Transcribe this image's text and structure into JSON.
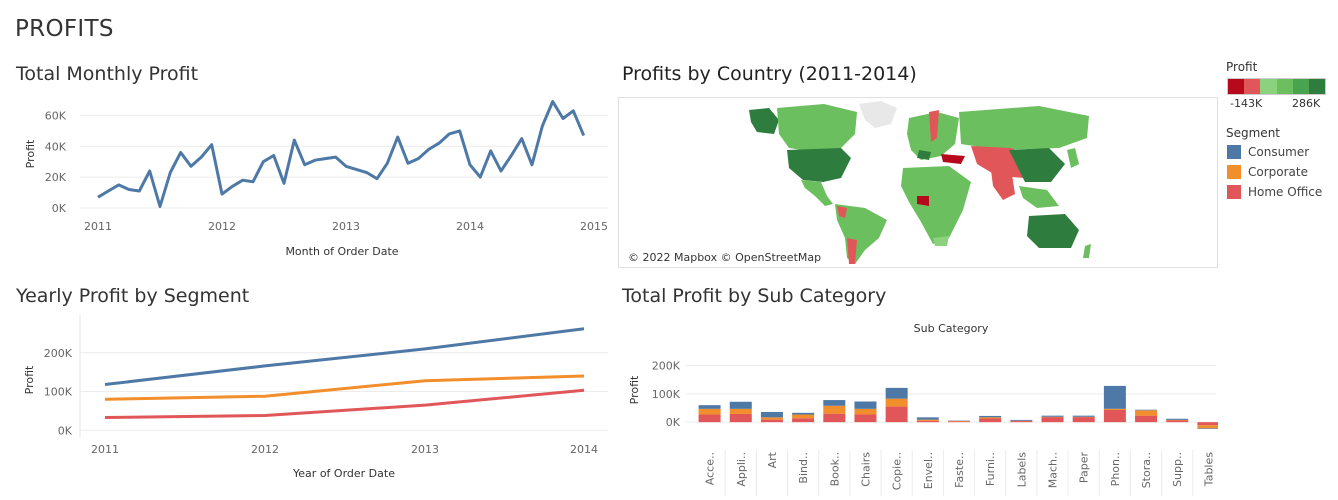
{
  "dashboard": {
    "title": "PROFITS"
  },
  "colors": {
    "consumer": "#4e79a7",
    "corporate": "#f28e2b",
    "home_office": "#e15759",
    "monthly_line": "#4e79a7",
    "profit_scale": [
      "#b60a1c",
      "#e15759",
      "#8cd17d",
      "#6cbf5f",
      "#4aa34e",
      "#2e7d3e"
    ]
  },
  "monthly": {
    "title": "Total Monthly Profit",
    "chart_data": {
      "type": "line",
      "title": "Total Monthly Profit",
      "xlabel": "Month of Order Date",
      "ylabel": "Profit",
      "x_ticks": [
        "2011",
        "2012",
        "2013",
        "2014",
        "2015"
      ],
      "y_ticks": [
        "0K",
        "20K",
        "40K",
        "60K"
      ],
      "ylim": [
        0,
        70000
      ],
      "x_start": "2011-01",
      "x": [
        "2011-01",
        "2011-02",
        "2011-03",
        "2011-04",
        "2011-05",
        "2011-06",
        "2011-07",
        "2011-08",
        "2011-09",
        "2011-10",
        "2011-11",
        "2011-12",
        "2012-01",
        "2012-02",
        "2012-03",
        "2012-04",
        "2012-05",
        "2012-06",
        "2012-07",
        "2012-08",
        "2012-09",
        "2012-10",
        "2012-11",
        "2012-12",
        "2013-01",
        "2013-02",
        "2013-03",
        "2013-04",
        "2013-05",
        "2013-06",
        "2013-07",
        "2013-08",
        "2013-09",
        "2013-10",
        "2013-11",
        "2013-12",
        "2014-01",
        "2014-02",
        "2014-03",
        "2014-04",
        "2014-05",
        "2014-06",
        "2014-07",
        "2014-08",
        "2014-09",
        "2014-10",
        "2014-11",
        "2014-12"
      ],
      "values": [
        7000,
        11000,
        15000,
        12000,
        11000,
        24000,
        1000,
        23000,
        36000,
        27000,
        33000,
        41000,
        9000,
        14000,
        18000,
        17000,
        30000,
        34000,
        16000,
        44000,
        28000,
        31000,
        32000,
        33000,
        27000,
        25000,
        23000,
        19000,
        29000,
        46000,
        29000,
        32000,
        38000,
        42000,
        48000,
        50000,
        28000,
        20000,
        37000,
        24000,
        34000,
        45000,
        28000,
        53000,
        69000,
        58000,
        63000,
        47000
      ]
    }
  },
  "map": {
    "title": "Profits by Country (2011-2014)",
    "attribution": "© 2022 Mapbox © OpenStreetMap",
    "legend_title": "Profit",
    "legend_min": "-143K",
    "legend_max": "286K"
  },
  "segment_legend": {
    "title": "Segment",
    "items": [
      {
        "label": "Consumer",
        "color": "#4e79a7"
      },
      {
        "label": "Corporate",
        "color": "#f28e2b"
      },
      {
        "label": "Home Office",
        "color": "#e15759"
      }
    ]
  },
  "yearly": {
    "title": "Yearly Profit by Segment",
    "chart_data": {
      "type": "line",
      "title": "Yearly Profit by Segment",
      "xlabel": "Year of Order Date",
      "ylabel": "Profit",
      "categories": [
        "2011",
        "2012",
        "2013",
        "2014"
      ],
      "y_ticks": [
        "0K",
        "100K",
        "200K"
      ],
      "ylim": [
        -20000,
        300000
      ],
      "series": [
        {
          "name": "Consumer",
          "values": [
            118000,
            166000,
            210000,
            262000
          ]
        },
        {
          "name": "Corporate",
          "values": [
            80000,
            88000,
            128000,
            140000
          ]
        },
        {
          "name": "Home Office",
          "values": [
            33000,
            38000,
            65000,
            103000
          ]
        }
      ]
    }
  },
  "subcat": {
    "title": "Total Profit by Sub Category",
    "chart_data": {
      "type": "bar",
      "stacked": true,
      "title": "Total Profit by Sub Category",
      "header": "Sub Category",
      "ylabel": "Profit",
      "y_ticks": [
        "0K",
        "100K",
        "200K"
      ],
      "ylim": [
        -70000,
        290000
      ],
      "categories": [
        "Acce..",
        "Appli..",
        "Art",
        "Bind..",
        "Book..",
        "Chairs",
        "Copie..",
        "Envel..",
        "Faste..",
        "Furni..",
        "Labels",
        "Mach..",
        "Paper",
        "Phon..",
        "Stora..",
        "Supp..",
        "Tables"
      ],
      "series": [
        {
          "name": "Home Office",
          "values": [
            27000,
            29000,
            9000,
            14000,
            30000,
            27000,
            55000,
            5000,
            3000,
            13000,
            4000,
            18000,
            18000,
            43000,
            23000,
            6000,
            -11000
          ]
        },
        {
          "name": "Corporate",
          "values": [
            47000,
            47000,
            17000,
            27000,
            58000,
            47000,
            83000,
            9000,
            5000,
            17000,
            5000,
            19000,
            19000,
            47000,
            42000,
            8000,
            -23000
          ]
        },
        {
          "name": "Consumer",
          "values": [
            60000,
            72000,
            36000,
            33000,
            78000,
            73000,
            121000,
            17000,
            6000,
            22000,
            8000,
            23000,
            23000,
            128000,
            44000,
            12000,
            -21000
          ]
        }
      ]
    }
  }
}
